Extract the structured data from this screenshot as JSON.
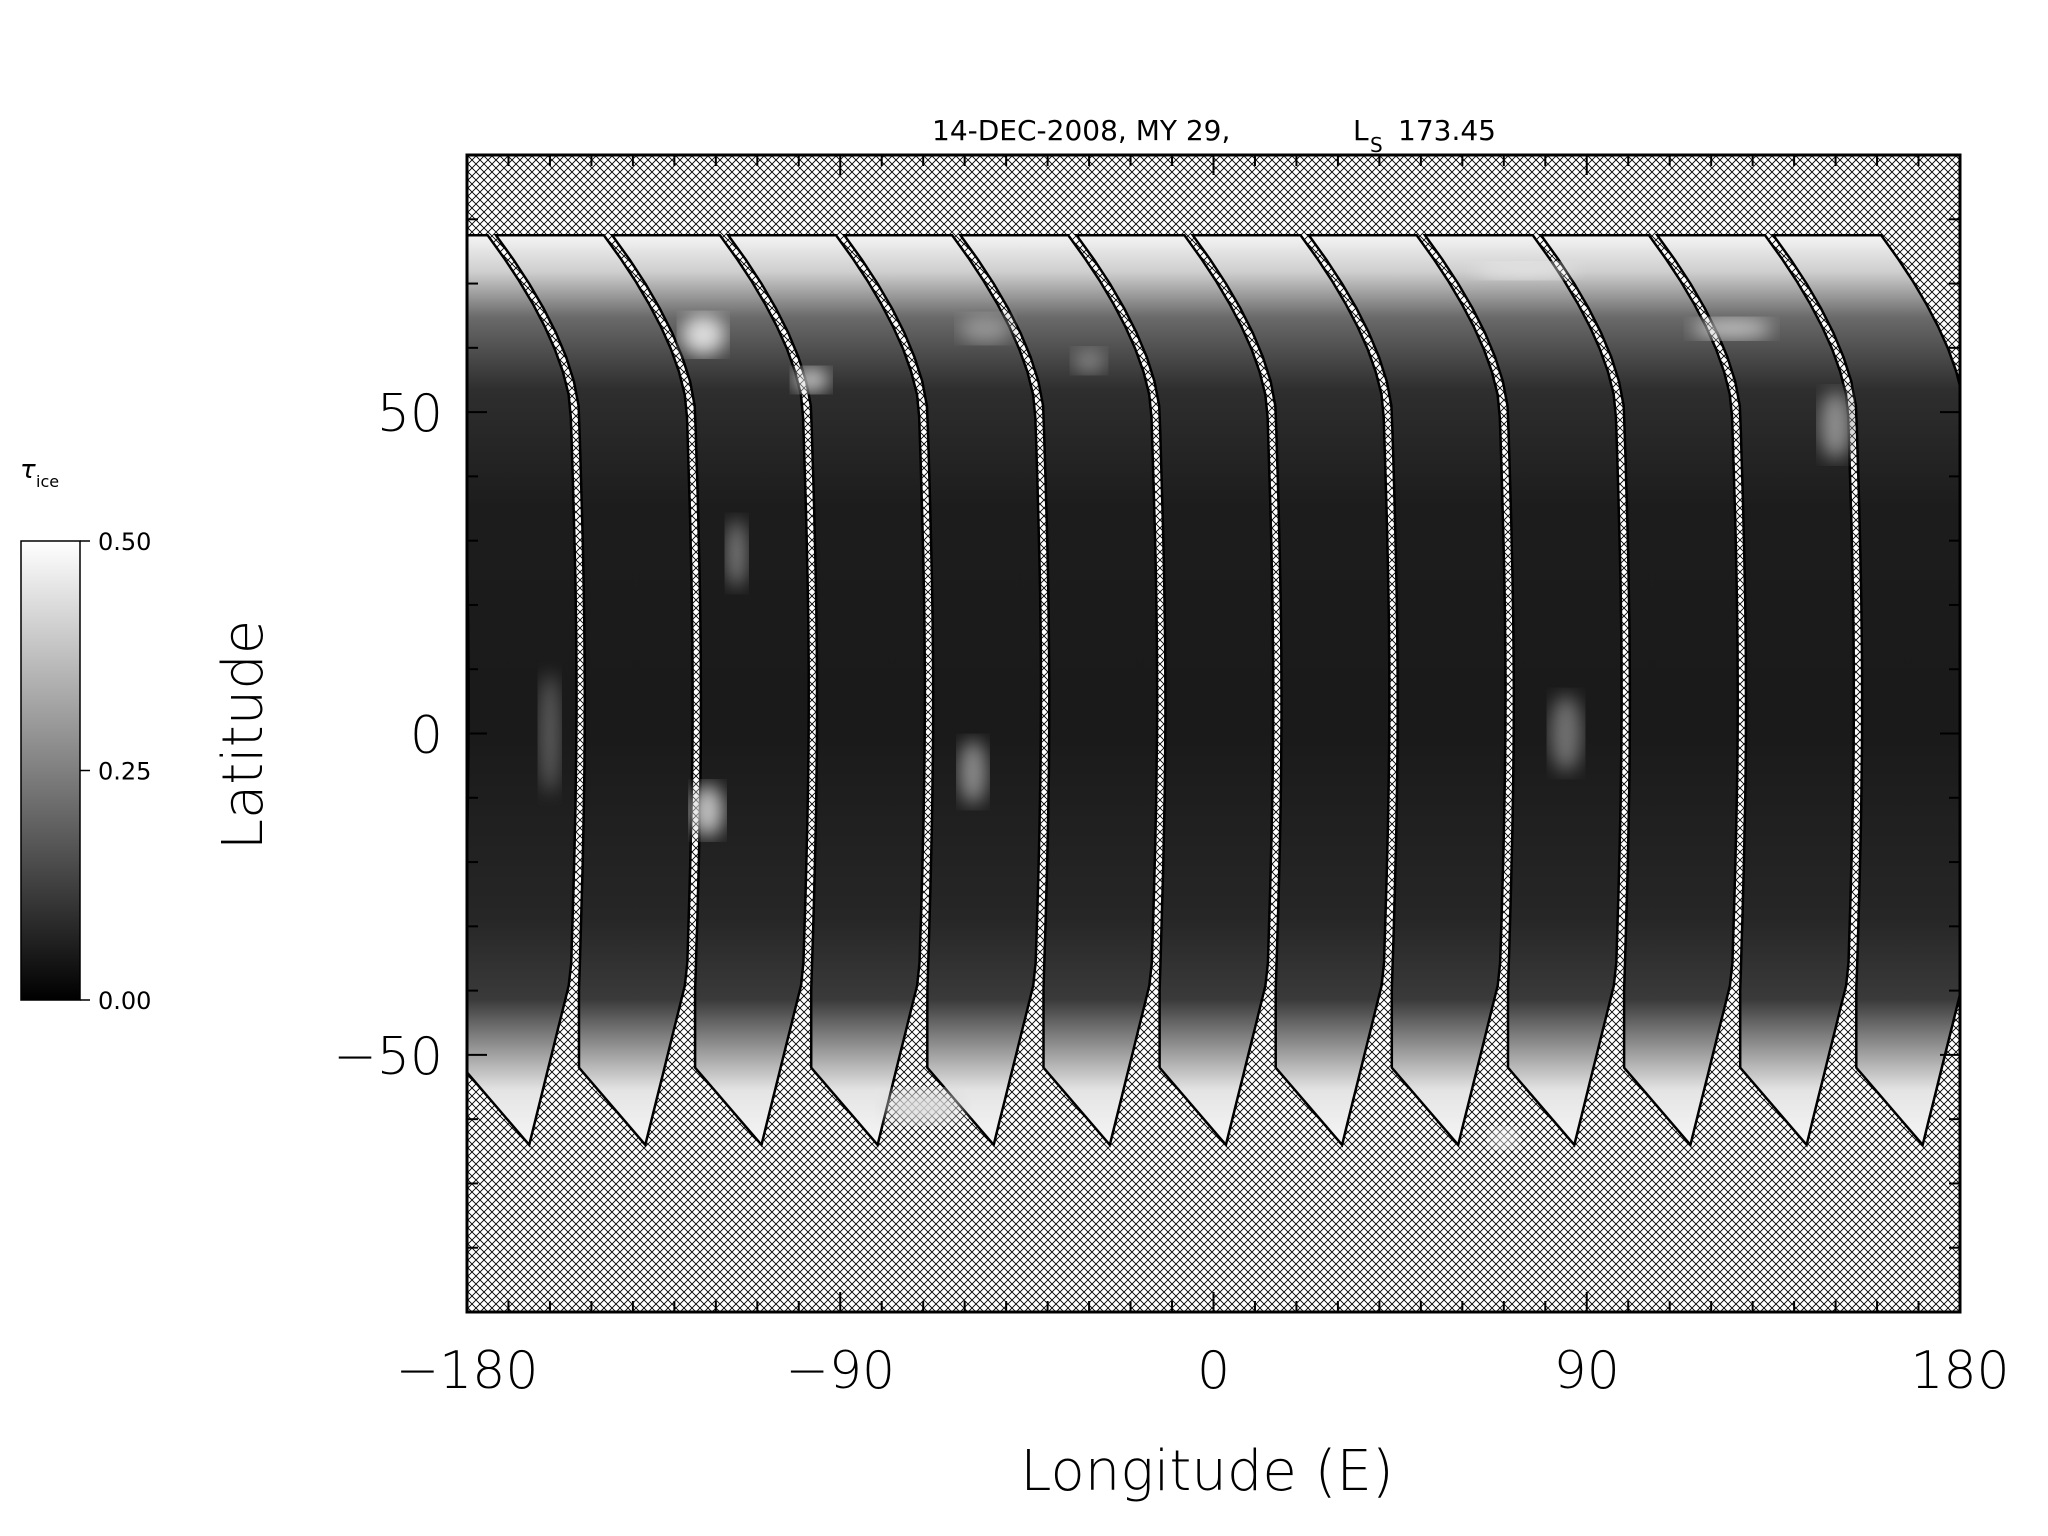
{
  "chart_data": {
    "type": "heatmap",
    "title_main": "14-DEC-2008, MY 29,",
    "title_ls_symbol": "L",
    "title_ls_sub": "S",
    "title_ls_value": "173.45",
    "xlabel": "Longitude (E)",
    "ylabel": "Latitude",
    "xlim": [
      -180,
      180
    ],
    "ylim": [
      -90,
      90
    ],
    "x_ticks": [
      {
        "value": -180,
        "label": "−180"
      },
      {
        "value": -90,
        "label": "−90"
      },
      {
        "value": 0,
        "label": "0"
      },
      {
        "value": 90,
        "label": "90"
      },
      {
        "value": 180,
        "label": "180"
      }
    ],
    "y_ticks": [
      {
        "value": -50,
        "label": "−50"
      },
      {
        "value": 0,
        "label": "0"
      },
      {
        "value": 50,
        "label": "50"
      }
    ],
    "colorbar": {
      "symbol": "τ",
      "subscript": "ice",
      "range": [
        0.0,
        0.5
      ],
      "colormap": "grayscale",
      "ticks": [
        {
          "value": 0.0,
          "label": "0.00"
        },
        {
          "value": 0.25,
          "label": "0.25"
        },
        {
          "value": 0.5,
          "label": "0.50"
        }
      ]
    },
    "coverage": {
      "north_limit_lat": 77.5,
      "south_limit_lat": -64,
      "no_data_fill": "crosshatch",
      "swaths_east_lon": [
        -183,
        -155,
        -127,
        -99,
        -71,
        -43,
        -15,
        13,
        41,
        69,
        97,
        125,
        153,
        181
      ]
    },
    "colors": {
      "background": "#ffffff",
      "axis": "#000000",
      "high": "#ffffff",
      "low": "#000000"
    }
  }
}
